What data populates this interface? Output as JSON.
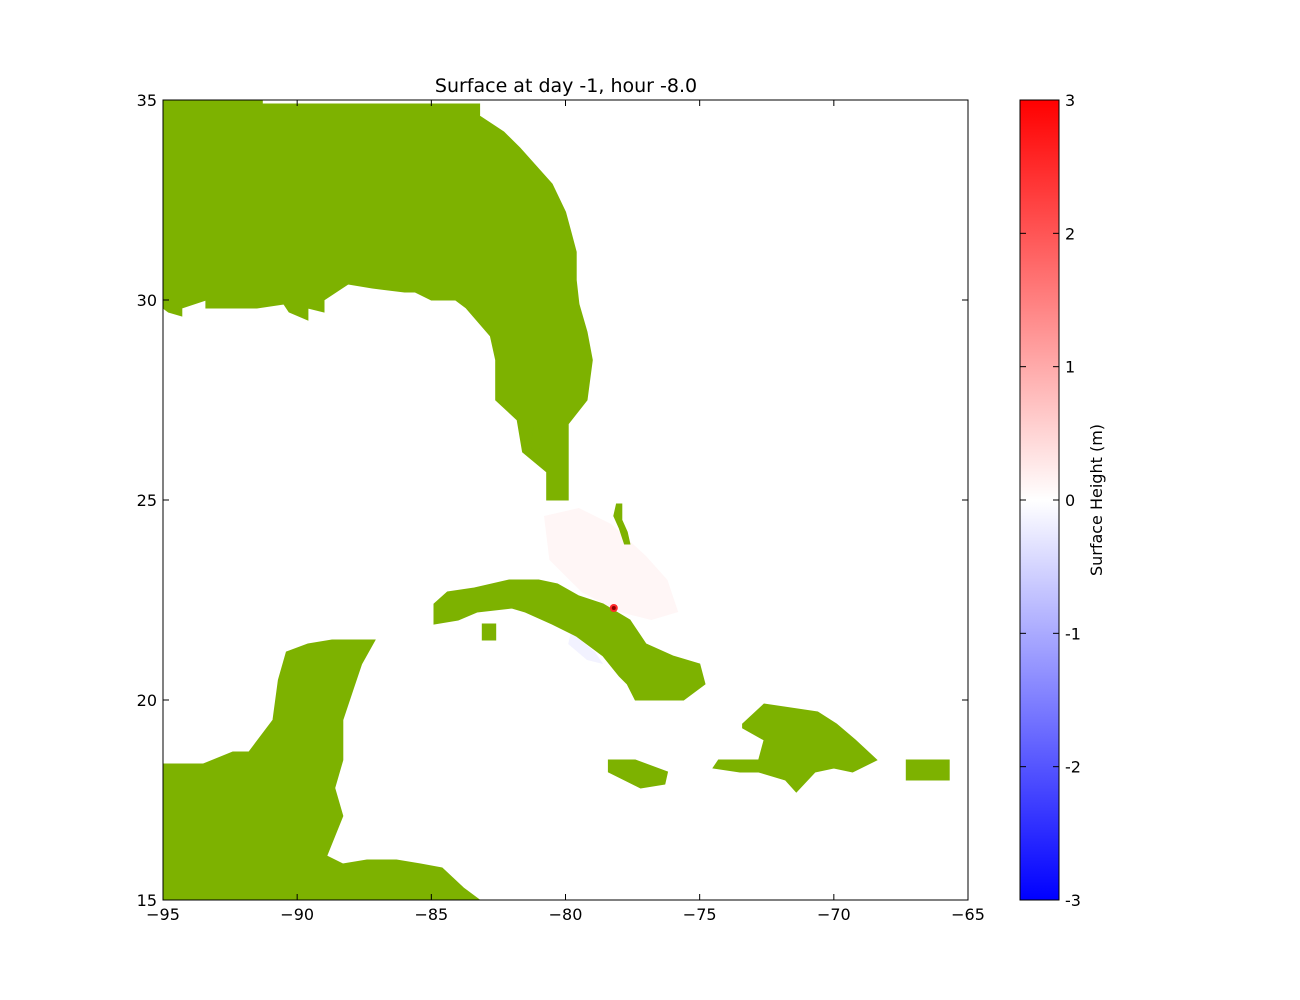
{
  "chart_data": {
    "type": "heatmap",
    "title": "Surface at day  -1, hour -8.0",
    "xlim": [
      -95,
      -65
    ],
    "ylim": [
      15,
      35
    ],
    "x_ticks": [
      -95,
      -90,
      -85,
      -80,
      -75,
      -70,
      -65
    ],
    "x_tick_labels": [
      "−95",
      "−90",
      "−85",
      "−80",
      "−75",
      "−70",
      "−65"
    ],
    "y_ticks": [
      15,
      20,
      25,
      30,
      35
    ],
    "y_tick_labels": [
      "15",
      "20",
      "25",
      "30",
      "35"
    ],
    "colorbar": {
      "label": "Surface Height (m)",
      "range": [
        -3,
        3
      ],
      "ticks": [
        -3,
        -2,
        -1,
        0,
        1,
        2,
        3
      ],
      "tick_labels": [
        "-3",
        "-2",
        "-1",
        "0",
        "1",
        "2",
        "3"
      ],
      "colormap": "bwr",
      "colors": {
        "min": "#0000ff",
        "mid": "#ffffff",
        "max": "#ff0000"
      }
    },
    "land_color": "#7db200",
    "land_dark_color": "#3d8a2e",
    "land_polygons": [
      {
        "name": "north-america-mainland",
        "points": [
          [
            -95,
            35
          ],
          [
            -91.3,
            35
          ],
          [
            -91.3,
            34.9
          ],
          [
            -83.2,
            34.9
          ],
          [
            -83.2,
            34.6
          ],
          [
            -82.3,
            34.2
          ],
          [
            -81.7,
            33.8
          ],
          [
            -80.5,
            32.9
          ],
          [
            -80.0,
            32.2
          ],
          [
            -79.8,
            31.7
          ],
          [
            -79.6,
            31.2
          ],
          [
            -79.6,
            30.5
          ],
          [
            -79.5,
            29.9
          ],
          [
            -79.2,
            29.2
          ],
          [
            -79.0,
            28.5
          ],
          [
            -79.2,
            27.5
          ],
          [
            -79.9,
            26.9
          ],
          [
            -79.9,
            26.3
          ],
          [
            -79.9,
            25.0
          ],
          [
            -80.7,
            25.0
          ],
          [
            -80.7,
            25.7
          ],
          [
            -81.6,
            26.2
          ],
          [
            -81.8,
            27.0
          ],
          [
            -82.6,
            27.5
          ],
          [
            -82.6,
            28.5
          ],
          [
            -82.8,
            29.1
          ],
          [
            -83.7,
            29.8
          ],
          [
            -84.1,
            30.0
          ],
          [
            -85.0,
            30.0
          ],
          [
            -85.6,
            30.2
          ],
          [
            -86.0,
            30.2
          ],
          [
            -87.2,
            30.3
          ],
          [
            -88.1,
            30.4
          ],
          [
            -89.0,
            30.0
          ],
          [
            -89.0,
            29.7
          ],
          [
            -89.6,
            29.8
          ],
          [
            -89.6,
            29.5
          ],
          [
            -90.3,
            29.7
          ],
          [
            -90.5,
            29.9
          ],
          [
            -91.5,
            29.8
          ],
          [
            -92.7,
            29.8
          ],
          [
            -93.4,
            29.8
          ],
          [
            -93.4,
            30.0
          ],
          [
            -94.3,
            29.8
          ],
          [
            -94.3,
            29.6
          ],
          [
            -94.8,
            29.7
          ],
          [
            -95,
            29.8
          ]
        ]
      },
      {
        "name": "florida-keys-island",
        "points": [
          [
            -81.0,
            26.9
          ],
          [
            -80.9,
            26.6
          ],
          [
            -81.0,
            26.2
          ],
          [
            -81.3,
            26.3
          ],
          [
            -81.2,
            26.9
          ]
        ]
      },
      {
        "name": "andros-island",
        "points": [
          [
            -78.1,
            24.9
          ],
          [
            -77.9,
            24.9
          ],
          [
            -77.9,
            24.5
          ],
          [
            -77.7,
            24.2
          ],
          [
            -77.6,
            23.9
          ],
          [
            -77.8,
            23.9
          ],
          [
            -78.0,
            24.3
          ],
          [
            -78.2,
            24.6
          ]
        ]
      },
      {
        "name": "cuba",
        "points": [
          [
            -84.9,
            22.4
          ],
          [
            -84.4,
            22.7
          ],
          [
            -83.4,
            22.8
          ],
          [
            -82.1,
            23.0
          ],
          [
            -81.0,
            23.0
          ],
          [
            -80.3,
            22.9
          ],
          [
            -79.5,
            22.6
          ],
          [
            -78.6,
            22.4
          ],
          [
            -77.6,
            22.0
          ],
          [
            -77.0,
            21.4
          ],
          [
            -76.0,
            21.1
          ],
          [
            -75.0,
            20.9
          ],
          [
            -74.8,
            20.4
          ],
          [
            -75.6,
            20.0
          ],
          [
            -76.8,
            20.0
          ],
          [
            -77.4,
            20.0
          ],
          [
            -77.7,
            20.4
          ],
          [
            -78.0,
            20.6
          ],
          [
            -78.6,
            21.1
          ],
          [
            -79.6,
            21.6
          ],
          [
            -80.5,
            21.9
          ],
          [
            -81.5,
            22.2
          ],
          [
            -82.0,
            22.3
          ],
          [
            -83.3,
            22.2
          ],
          [
            -84.0,
            22.0
          ],
          [
            -84.9,
            21.9
          ]
        ]
      },
      {
        "name": "isle-of-youth",
        "points": [
          [
            -83.1,
            21.9
          ],
          [
            -82.6,
            21.9
          ],
          [
            -82.6,
            21.5
          ],
          [
            -83.1,
            21.5
          ]
        ]
      },
      {
        "name": "jamaica",
        "points": [
          [
            -78.4,
            18.5
          ],
          [
            -77.4,
            18.5
          ],
          [
            -76.2,
            18.2
          ],
          [
            -76.3,
            17.9
          ],
          [
            -77.2,
            17.8
          ],
          [
            -78.4,
            18.2
          ]
        ]
      },
      {
        "name": "hispaniola",
        "points": [
          [
            -73.4,
            19.4
          ],
          [
            -72.6,
            19.9
          ],
          [
            -71.6,
            19.8
          ],
          [
            -70.6,
            19.7
          ],
          [
            -69.9,
            19.4
          ],
          [
            -69.2,
            19.0
          ],
          [
            -68.4,
            18.5
          ],
          [
            -69.3,
            18.2
          ],
          [
            -70.0,
            18.3
          ],
          [
            -70.7,
            18.2
          ],
          [
            -71.4,
            17.7
          ],
          [
            -71.8,
            18.0
          ],
          [
            -72.8,
            18.2
          ],
          [
            -73.5,
            18.2
          ],
          [
            -74.5,
            18.3
          ],
          [
            -74.3,
            18.5
          ],
          [
            -72.8,
            18.5
          ],
          [
            -72.6,
            19.0
          ],
          [
            -73.4,
            19.3
          ]
        ]
      },
      {
        "name": "puerto-rico",
        "points": [
          [
            -67.3,
            18.5
          ],
          [
            -65.7,
            18.5
          ],
          [
            -65.7,
            18.0
          ],
          [
            -67.3,
            18.0
          ]
        ]
      },
      {
        "name": "central-america",
        "points": [
          [
            -95,
            18.4
          ],
          [
            -94.5,
            18.4
          ],
          [
            -93.5,
            18.4
          ],
          [
            -92.4,
            18.7
          ],
          [
            -91.8,
            18.7
          ],
          [
            -90.9,
            19.5
          ],
          [
            -90.7,
            20.5
          ],
          [
            -90.4,
            21.2
          ],
          [
            -89.6,
            21.4
          ],
          [
            -88.7,
            21.5
          ],
          [
            -87.8,
            21.5
          ],
          [
            -87.1,
            21.5
          ],
          [
            -87.6,
            20.9
          ],
          [
            -87.9,
            20.3
          ],
          [
            -88.3,
            19.5
          ],
          [
            -88.3,
            18.5
          ],
          [
            -88.6,
            17.8
          ],
          [
            -88.3,
            17.1
          ],
          [
            -88.9,
            16.1
          ],
          [
            -88.3,
            15.9
          ],
          [
            -87.4,
            16.0
          ],
          [
            -86.3,
            16.0
          ],
          [
            -85.4,
            15.9
          ],
          [
            -84.6,
            15.8
          ],
          [
            -83.8,
            15.3
          ],
          [
            -83.2,
            15.0
          ],
          [
            -95,
            15.0
          ]
        ]
      }
    ],
    "anomaly_regions": [
      {
        "name": "positive-anomaly",
        "value": 0.1,
        "points": [
          [
            -80.8,
            24.6
          ],
          [
            -79.5,
            24.8
          ],
          [
            -78.3,
            24.4
          ],
          [
            -77.0,
            23.6
          ],
          [
            -76.2,
            23.0
          ],
          [
            -75.8,
            22.2
          ],
          [
            -76.8,
            22.0
          ],
          [
            -78.0,
            22.2
          ],
          [
            -79.4,
            22.7
          ],
          [
            -80.6,
            23.5
          ]
        ]
      },
      {
        "name": "negative-anomaly",
        "value": -0.15,
        "points": [
          [
            -79.8,
            21.7
          ],
          [
            -78.9,
            21.2
          ],
          [
            -78.6,
            20.9
          ],
          [
            -79.2,
            21.0
          ],
          [
            -79.9,
            21.4
          ]
        ]
      }
    ],
    "peak": {
      "lon": -78.2,
      "lat": 22.3,
      "value": 2.5
    }
  }
}
